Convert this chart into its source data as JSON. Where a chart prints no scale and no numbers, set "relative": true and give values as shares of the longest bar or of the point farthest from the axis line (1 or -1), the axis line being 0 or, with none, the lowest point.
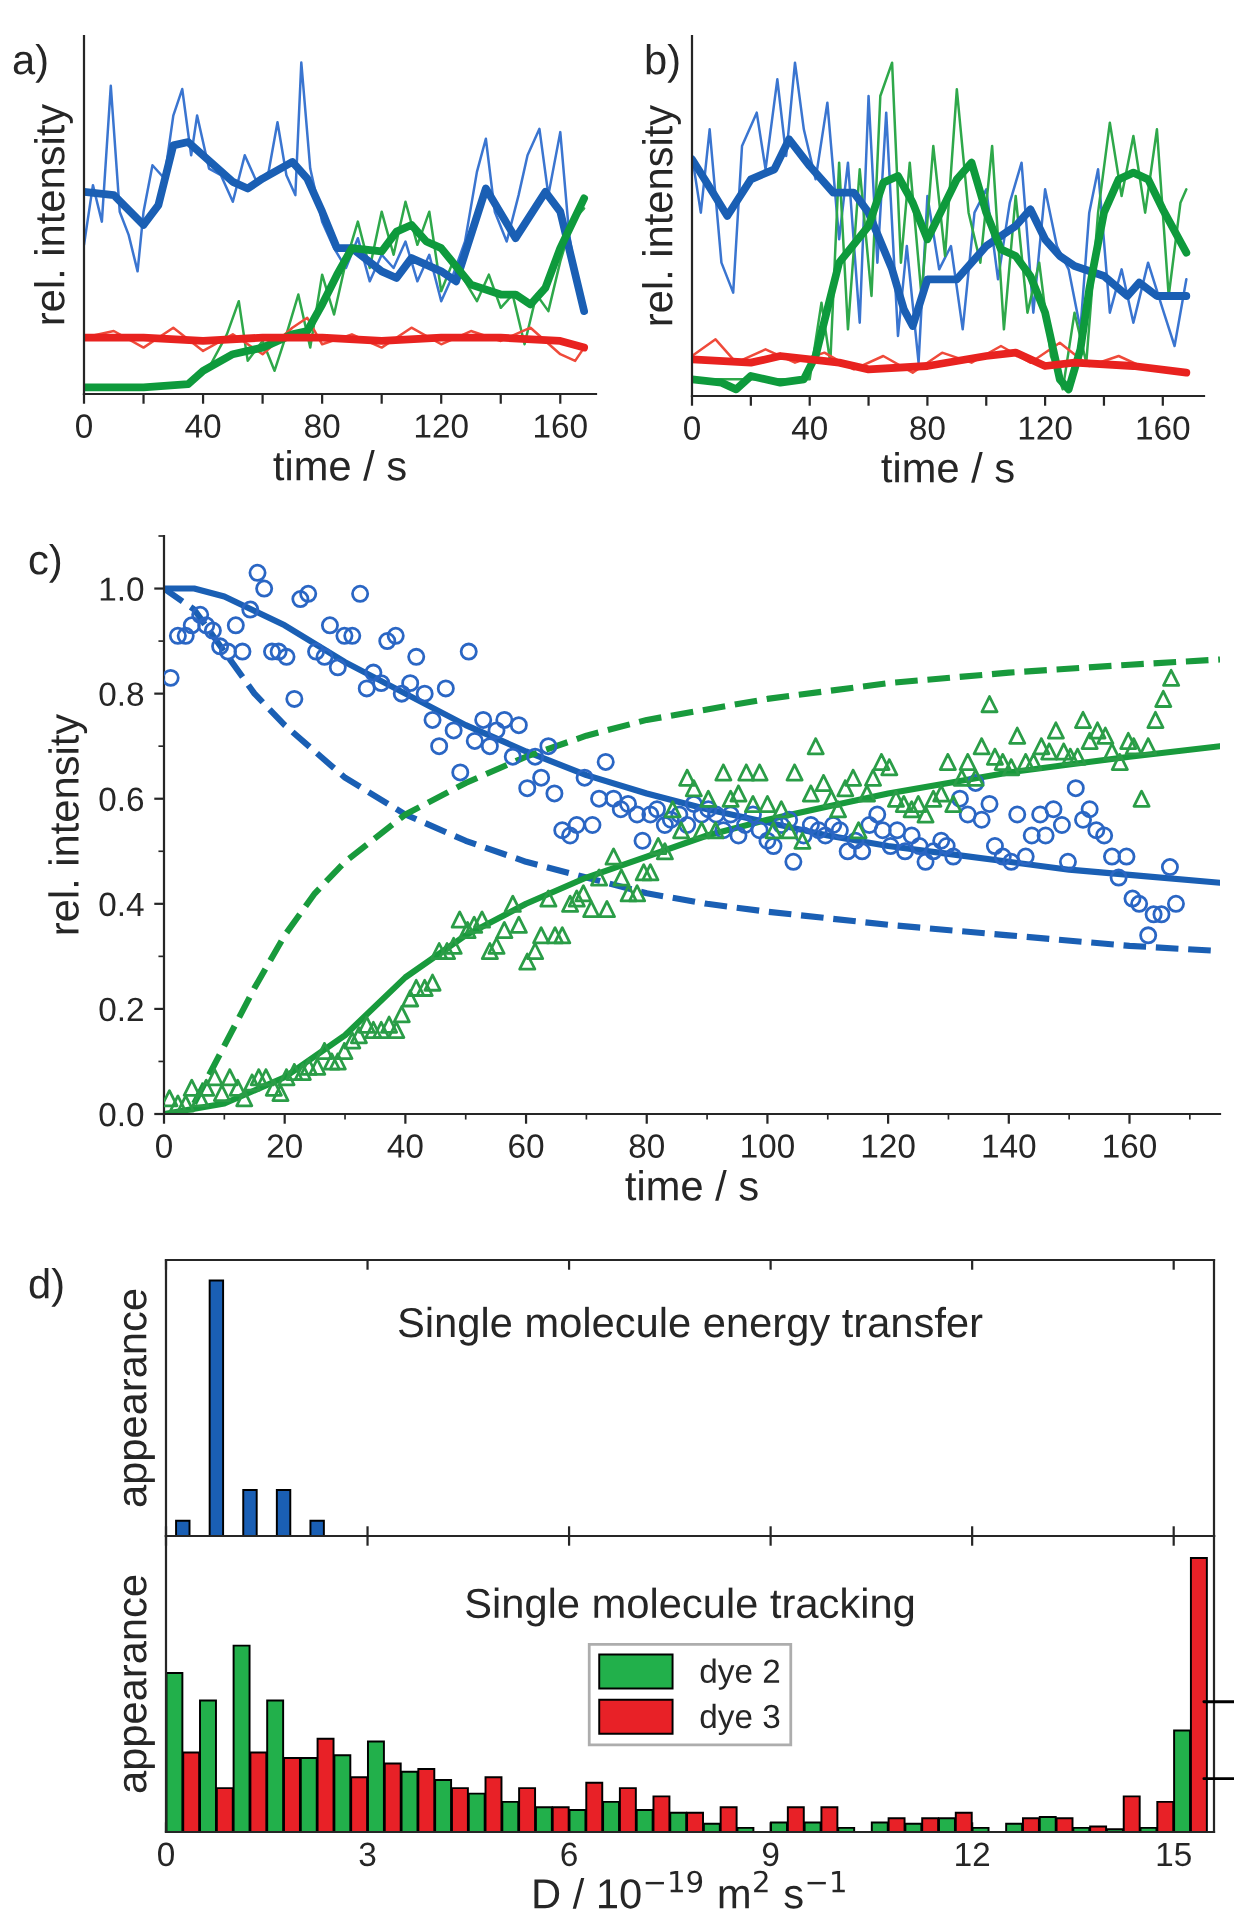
{
  "chart_data": [
    {
      "type": "line",
      "relative": true,
      "xlabel": "time / s",
      "ylabel": "rel. intensity",
      "annotations": [
        "a)"
      ],
      "xlim": [
        0,
        172
      ],
      "xticks": [
        0,
        {
          "value": 20,
          "label": null
        },
        40,
        {
          "value": 60,
          "label": null
        },
        80,
        {
          "value": 100,
          "label": null
        },
        120,
        {
          "value": 140,
          "label": null
        },
        160
      ],
      "tick_labels": "x",
      "series": [
        {
          "color": "#3a75d0",
          "x": [
            0,
            3,
            6,
            9,
            12,
            15,
            18,
            20,
            23,
            27,
            30,
            33,
            36,
            38,
            42,
            46,
            50,
            54,
            58,
            62,
            65,
            68,
            71,
            73,
            76,
            80,
            84,
            88,
            92,
            96,
            100,
            104,
            108,
            112,
            116,
            120,
            124,
            128,
            132,
            135,
            138,
            142,
            146,
            149,
            153,
            156,
            160,
            163,
            166,
            168
          ],
          "values": [
            0.45,
            0.63,
            0.52,
            0.93,
            0.55,
            0.48,
            0.37,
            0.55,
            0.69,
            0.65,
            0.84,
            0.92,
            0.72,
            0.84,
            0.68,
            0.66,
            0.58,
            0.72,
            0.64,
            0.67,
            0.82,
            0.66,
            0.6,
            1.0,
            0.68,
            0.52,
            0.44,
            0.38,
            0.47,
            0.34,
            0.42,
            0.38,
            0.46,
            0.34,
            0.42,
            0.28,
            0.36,
            0.46,
            0.67,
            0.77,
            0.55,
            0.46,
            0.6,
            0.72,
            0.8,
            0.6,
            0.79,
            0.48,
            0.31,
            0.27
          ]
        },
        {
          "color": "#2ea84a",
          "x": [
            0,
            35,
            42,
            48,
            52,
            55,
            60,
            64,
            68,
            72,
            76,
            80,
            84,
            88,
            92,
            96,
            100,
            104,
            108,
            112,
            116,
            120,
            124,
            128,
            132,
            136,
            140,
            144,
            148,
            152,
            156,
            160,
            164,
            168
          ],
          "values": [
            0.02,
            0.03,
            0.08,
            0.18,
            0.28,
            0.1,
            0.16,
            0.07,
            0.18,
            0.3,
            0.14,
            0.36,
            0.24,
            0.4,
            0.52,
            0.38,
            0.55,
            0.42,
            0.58,
            0.45,
            0.55,
            0.31,
            0.4,
            0.34,
            0.28,
            0.36,
            0.26,
            0.3,
            0.15,
            0.3,
            0.25,
            0.4,
            0.52,
            0.56
          ]
        },
        {
          "color": "#ef4a3a",
          "x": [
            0,
            10,
            20,
            30,
            40,
            50,
            60,
            70,
            75,
            80,
            90,
            100,
            110,
            120,
            130,
            140,
            150,
            160,
            165,
            168
          ],
          "values": [
            0.17,
            0.19,
            0.14,
            0.2,
            0.13,
            0.18,
            0.12,
            0.2,
            0.23,
            0.15,
            0.18,
            0.14,
            0.2,
            0.15,
            0.19,
            0.16,
            0.2,
            0.12,
            0.1,
            0.14
          ]
        },
        {
          "color": "#1a5fb4",
          "x": [
            0,
            10,
            20,
            25,
            30,
            35,
            40,
            50,
            55,
            60,
            70,
            75,
            80,
            85,
            90,
            100,
            105,
            110,
            120,
            125,
            135,
            145,
            155,
            160,
            168
          ],
          "values": [
            0.61,
            0.6,
            0.51,
            0.57,
            0.75,
            0.76,
            0.72,
            0.64,
            0.62,
            0.65,
            0.7,
            0.65,
            0.55,
            0.44,
            0.44,
            0.37,
            0.35,
            0.41,
            0.37,
            0.34,
            0.62,
            0.47,
            0.61,
            0.55,
            0.25
          ]
        },
        {
          "color": "#0e9a3c",
          "x": [
            0,
            20,
            35,
            40,
            50,
            60,
            70,
            75,
            80,
            85,
            90,
            100,
            105,
            110,
            115,
            120,
            130,
            140,
            145,
            150,
            155,
            160,
            168
          ],
          "values": [
            0.02,
            0.02,
            0.03,
            0.07,
            0.12,
            0.14,
            0.18,
            0.19,
            0.27,
            0.36,
            0.44,
            0.43,
            0.49,
            0.51,
            0.46,
            0.44,
            0.33,
            0.3,
            0.3,
            0.27,
            0.32,
            0.44,
            0.59
          ]
        },
        {
          "color": "#e8221f",
          "x": [
            0,
            20,
            40,
            60,
            80,
            100,
            120,
            140,
            160,
            168
          ],
          "values": [
            0.17,
            0.17,
            0.16,
            0.17,
            0.17,
            0.16,
            0.17,
            0.17,
            0.16,
            0.14
          ]
        }
      ]
    },
    {
      "type": "line",
      "relative": true,
      "xlabel": "time / s",
      "ylabel": "rel. intensity",
      "annotations": [
        "b)"
      ],
      "xlim": [
        0,
        174
      ],
      "xticks": [
        0,
        {
          "value": 20,
          "label": null
        },
        40,
        {
          "value": 60,
          "label": null
        },
        80,
        {
          "value": 100,
          "label": null
        },
        120,
        {
          "value": 140,
          "label": null
        },
        160
      ],
      "tick_labels": "x",
      "series": [
        {
          "color": "#3a75d0",
          "x": [
            0,
            3,
            6,
            10,
            14,
            17,
            22,
            25,
            29,
            32,
            35,
            38,
            42,
            46,
            50,
            53,
            57,
            60,
            63,
            66,
            70,
            73,
            77,
            80,
            84,
            88,
            92,
            96,
            100,
            104,
            108,
            112,
            116,
            120,
            124,
            128,
            132,
            135,
            138,
            142,
            146,
            150,
            155,
            160,
            164,
            168
          ],
          "values": [
            0.72,
            0.55,
            0.8,
            0.4,
            0.31,
            0.75,
            0.85,
            0.68,
            0.95,
            0.72,
            1.0,
            0.8,
            0.65,
            0.88,
            0.47,
            0.7,
            0.22,
            0.9,
            0.4,
            0.85,
            0.18,
            0.45,
            0.1,
            0.6,
            0.38,
            0.45,
            0.2,
            0.55,
            0.62,
            0.35,
            0.58,
            0.7,
            0.25,
            0.62,
            0.45,
            0.38,
            0.2,
            0.55,
            0.68,
            0.25,
            0.38,
            0.22,
            0.4,
            0.26,
            0.15,
            0.35
          ]
        },
        {
          "color": "#2ea84a",
          "x": [
            0,
            40,
            44,
            47,
            50,
            53,
            57,
            61,
            64,
            68,
            71,
            74,
            78,
            82,
            86,
            90,
            94,
            98,
            102,
            106,
            110,
            114,
            118,
            122,
            126,
            130,
            134,
            138,
            142,
            146,
            150,
            154,
            158,
            162,
            166,
            168
          ],
          "values": [
            0.05,
            0.05,
            0.28,
            0.1,
            0.7,
            0.2,
            0.68,
            0.3,
            0.9,
            1.0,
            0.4,
            0.7,
            0.3,
            0.75,
            0.42,
            0.92,
            0.55,
            0.4,
            0.75,
            0.2,
            0.6,
            0.25,
            0.4,
            0.12,
            0.02,
            0.25,
            0.1,
            0.55,
            0.82,
            0.6,
            0.78,
            0.55,
            0.8,
            0.3,
            0.58,
            0.62
          ]
        },
        {
          "color": "#ef4a3a",
          "x": [
            0,
            8,
            15,
            25,
            35,
            45,
            55,
            65,
            75,
            85,
            95,
            105,
            115,
            125,
            135,
            145,
            155,
            168
          ],
          "values": [
            0.12,
            0.17,
            0.1,
            0.14,
            0.1,
            0.13,
            0.08,
            0.12,
            0.07,
            0.13,
            0.1,
            0.15,
            0.1,
            0.16,
            0.09,
            0.12,
            0.08,
            0.07
          ]
        },
        {
          "color": "#1a5fb4",
          "x": [
            0,
            5,
            12,
            20,
            28,
            33,
            40,
            48,
            55,
            60,
            68,
            72,
            75,
            80,
            90,
            100,
            110,
            115,
            120,
            125,
            130,
            140,
            148,
            152,
            158,
            168
          ],
          "values": [
            0.71,
            0.64,
            0.54,
            0.65,
            0.68,
            0.77,
            0.69,
            0.61,
            0.61,
            0.55,
            0.38,
            0.26,
            0.21,
            0.35,
            0.35,
            0.45,
            0.51,
            0.56,
            0.47,
            0.42,
            0.39,
            0.36,
            0.3,
            0.34,
            0.3,
            0.3
          ]
        },
        {
          "color": "#0e9a3c",
          "x": [
            0,
            10,
            15,
            20,
            30,
            38,
            42,
            50,
            60,
            65,
            70,
            75,
            80,
            85,
            90,
            95,
            100,
            105,
            110,
            115,
            120,
            125,
            128,
            132,
            135,
            140,
            145,
            150,
            155,
            160,
            168
          ],
          "values": [
            0.05,
            0.04,
            0.02,
            0.06,
            0.04,
            0.05,
            0.12,
            0.4,
            0.51,
            0.64,
            0.66,
            0.58,
            0.47,
            0.56,
            0.65,
            0.7,
            0.55,
            0.44,
            0.42,
            0.36,
            0.25,
            0.05,
            0.02,
            0.14,
            0.32,
            0.55,
            0.65,
            0.67,
            0.65,
            0.56,
            0.43
          ]
        },
        {
          "color": "#e8221f",
          "x": [
            0,
            20,
            30,
            50,
            60,
            80,
            100,
            110,
            120,
            130,
            150,
            168
          ],
          "values": [
            0.11,
            0.1,
            0.12,
            0.1,
            0.08,
            0.09,
            0.12,
            0.13,
            0.09,
            0.1,
            0.09,
            0.07
          ]
        }
      ]
    },
    {
      "type": "scatter",
      "xlabel": "time / s",
      "ylabel": "rel. intensity",
      "annotations": [
        "c)"
      ],
      "xlim": [
        0,
        175
      ],
      "xticks": [
        0,
        20,
        40,
        60,
        80,
        100,
        120,
        140,
        160
      ],
      "ylim": [
        0,
        1.1
      ],
      "yticks": [
        {
          "value": 0,
          "label": "0.0"
        },
        0.2,
        0.4,
        0.6,
        0.8,
        {
          "value": 1,
          "label": "1.0"
        }
      ],
      "series": [
        {
          "type": "scatter",
          "marker": "circle",
          "color": "#2a66c4",
          "x": [
            1.1,
            2.3,
            3.6,
            4.6,
            6,
            7,
            8.1,
            9.3,
            10.6,
            11.9,
            13,
            14.3,
            15.5,
            16.6,
            17.9,
            19,
            20.3,
            21.6,
            22.6,
            23.9,
            25.2,
            26.6,
            27.5,
            28.8,
            29.9,
            31.2,
            32.5,
            33.6,
            34.7,
            36,
            37,
            38.4,
            39.4,
            40.8,
            41.8,
            43.2,
            44.5,
            45.6,
            46.7,
            48,
            49.1,
            50.5,
            51.5,
            52.9,
            54,
            55.1,
            56.4,
            57.8,
            58.8,
            60.2,
            61.5,
            62.5,
            63.7,
            64.7,
            66,
            67.3,
            68.4,
            69.7,
            71,
            72.1,
            73.2,
            74.5,
            75.7,
            76.9,
            78.4,
            79.3,
            80.6,
            81.7,
            83,
            84,
            85.4,
            86.7,
            87.8,
            89.1,
            90.2,
            91.5,
            92.7,
            93.9,
            95.2,
            96.3,
            97.6,
            98.7,
            100,
            101,
            102.3,
            103.6,
            104.3,
            106,
            107.2,
            108.5,
            109.6,
            110.9,
            112,
            113.3,
            114.6,
            115.7,
            116.9,
            118.2,
            119.1,
            120.4,
            121.5,
            122.8,
            123.9,
            125.2,
            126.2,
            127.5,
            128.8,
            129.7,
            130.8,
            131.9,
            133.2,
            134.5,
            135.5,
            136.8,
            137.7,
            139,
            140.4,
            141.4,
            142.8,
            143.8,
            145.2,
            146.1,
            147.4,
            148.8,
            149.8,
            151.1,
            152.3,
            153.4,
            154.5,
            155.8,
            157.1,
            158.2,
            159.5,
            160.5,
            161.6,
            163.1,
            164,
            165.3,
            166.7,
            167.7
          ],
          "values": [
            0.83,
            0.91,
            0.91,
            0.93,
            0.95,
            0.93,
            0.92,
            0.89,
            0.88,
            0.93,
            0.88,
            0.96,
            1.03,
            1.0,
            0.88,
            0.88,
            0.87,
            0.79,
            0.98,
            0.99,
            0.88,
            0.87,
            0.93,
            0.85,
            0.91,
            0.91,
            0.99,
            0.81,
            0.84,
            0.82,
            0.9,
            0.91,
            0.8,
            0.82,
            0.87,
            0.8,
            0.75,
            0.7,
            0.81,
            0.73,
            0.65,
            0.88,
            0.71,
            0.75,
            0.7,
            0.73,
            0.75,
            0.68,
            0.74,
            0.62,
            0.68,
            0.64,
            0.7,
            0.61,
            0.54,
            0.53,
            0.55,
            0.64,
            0.55,
            0.6,
            0.67,
            0.6,
            0.58,
            0.59,
            0.57,
            0.52,
            0.57,
            0.58,
            0.55,
            0.56,
            0.57,
            0.55,
            0.59,
            0.57,
            0.58,
            0.57,
            0.54,
            0.57,
            0.53,
            0.55,
            0.57,
            0.54,
            0.52,
            0.51,
            0.55,
            0.56,
            0.48,
            0.53,
            0.55,
            0.54,
            0.53,
            0.55,
            0.54,
            0.5,
            0.52,
            0.5,
            0.55,
            0.57,
            0.54,
            0.51,
            0.54,
            0.5,
            0.53,
            0.51,
            0.48,
            0.5,
            0.52,
            0.51,
            0.49,
            0.6,
            0.57,
            0.63,
            0.56,
            0.59,
            0.51,
            0.49,
            0.48,
            0.57,
            0.49,
            0.53,
            0.57,
            0.53,
            0.58,
            0.55,
            0.48,
            0.62,
            0.56,
            0.58,
            0.54,
            0.53,
            0.49,
            0.45,
            0.49,
            0.41,
            0.4,
            0.34,
            0.38,
            0.38,
            0.47,
            0.4
          ]
        },
        {
          "type": "scatter",
          "marker": "triangle",
          "color": "#2a9d47",
          "x": [
            0.9,
            2.3,
            3.6,
            4.6,
            6,
            7,
            8.4,
            9.6,
            10.9,
            12.2,
            13.3,
            14.6,
            15.7,
            16.9,
            18.2,
            19.3,
            20.3,
            21.6,
            23,
            24,
            25.4,
            26.6,
            27.8,
            28.8,
            29.9,
            31.2,
            32.3,
            33.6,
            34.7,
            36,
            37.3,
            38.5,
            39.4,
            40.8,
            41.8,
            43.2,
            44.5,
            45.6,
            46.9,
            48,
            49,
            50.3,
            51.4,
            52.7,
            54,
            55.1,
            56.4,
            57.8,
            58.8,
            60.2,
            61.5,
            62.5,
            63.7,
            64.8,
            66,
            67.3,
            68.4,
            69.5,
            70.8,
            72.1,
            73.4,
            74.5,
            75.8,
            77,
            78.4,
            79.5,
            80.6,
            81.9,
            83,
            84.3,
            85.7,
            86.7,
            87.8,
            89.1,
            90.2,
            91.4,
            92.7,
            93.9,
            95.2,
            96.5,
            97.6,
            98.7,
            100,
            101,
            102.3,
            103.6,
            104.5,
            105.8,
            107.2,
            108,
            109.3,
            110.6,
            111.7,
            112.9,
            114.2,
            115.1,
            116.5,
            117.5,
            118.9,
            120.2,
            121.3,
            122.6,
            123.9,
            125,
            126.2,
            127.5,
            128.8,
            129.9,
            130.8,
            132.2,
            133.2,
            134.5,
            135.5,
            136.8,
            137.7,
            139,
            140.4,
            141.4,
            142.8,
            144.1,
            145.4,
            146.7,
            147.8,
            149.1,
            150.2,
            151.4,
            152.3,
            153.4,
            154.7,
            156,
            157.1,
            158.4,
            159.8,
            160.7,
            162,
            163.1,
            164.3,
            165.6,
            166.9
          ],
          "values": [
            0.03,
            0.02,
            0.02,
            0.05,
            0.03,
            0.05,
            0.07,
            0.04,
            0.07,
            0.05,
            0.03,
            0.06,
            0.07,
            0.07,
            0.05,
            0.04,
            0.07,
            0.08,
            0.08,
            0.09,
            0.09,
            0.12,
            0.1,
            0.1,
            0.12,
            0.14,
            0.15,
            0.17,
            0.16,
            0.16,
            0.17,
            0.16,
            0.19,
            0.22,
            0.24,
            0.24,
            0.25,
            0.31,
            0.31,
            0.32,
            0.37,
            0.35,
            0.36,
            0.37,
            0.31,
            0.32,
            0.35,
            0.4,
            0.36,
            0.29,
            0.31,
            0.34,
            0.41,
            0.34,
            0.34,
            0.4,
            0.41,
            0.42,
            0.39,
            0.45,
            0.39,
            0.49,
            0.45,
            0.42,
            0.42,
            0.46,
            0.46,
            0.51,
            0.5,
            0.58,
            0.54,
            0.64,
            0.62,
            0.54,
            0.6,
            0.54,
            0.65,
            0.6,
            0.61,
            0.65,
            0.59,
            0.65,
            0.59,
            0.54,
            0.58,
            0.54,
            0.65,
            0.52,
            0.61,
            0.7,
            0.63,
            0.6,
            0.58,
            0.62,
            0.64,
            0.54,
            0.61,
            0.64,
            0.67,
            0.66,
            0.6,
            0.59,
            0.58,
            0.59,
            0.57,
            0.6,
            0.61,
            0.67,
            0.59,
            0.64,
            0.67,
            0.64,
            0.7,
            0.78,
            0.68,
            0.67,
            0.66,
            0.72,
            0.67,
            0.67,
            0.7,
            0.69,
            0.73,
            0.69,
            0.68,
            0.68,
            0.75,
            0.71,
            0.73,
            0.72,
            0.69,
            0.67,
            0.71,
            0.7,
            0.6,
            0.7,
            0.75,
            0.79,
            0.83
          ]
        },
        {
          "type": "line",
          "line_style": "solid",
          "color": "#1a5fb4",
          "x": [
            0,
            5,
            10,
            20,
            30,
            40,
            50,
            60,
            70,
            80,
            90,
            100,
            110,
            120,
            130,
            140,
            150,
            160,
            175
          ],
          "values": [
            1.0,
            1.0,
            0.985,
            0.93,
            0.86,
            0.8,
            0.74,
            0.69,
            0.645,
            0.61,
            0.58,
            0.555,
            0.53,
            0.51,
            0.495,
            0.48,
            0.465,
            0.455,
            0.44
          ]
        },
        {
          "type": "line",
          "line_style": "dashed",
          "color": "#1a5fb4",
          "x": [
            0,
            5,
            10,
            15,
            20,
            30,
            40,
            50,
            60,
            70,
            80,
            90,
            100,
            120,
            140,
            160,
            175
          ],
          "values": [
            1.0,
            0.96,
            0.88,
            0.8,
            0.74,
            0.64,
            0.57,
            0.52,
            0.48,
            0.45,
            0.42,
            0.4,
            0.385,
            0.36,
            0.34,
            0.32,
            0.31
          ]
        },
        {
          "type": "line",
          "line_style": "solid",
          "color": "#189a3c",
          "x": [
            0,
            10,
            20,
            30,
            40,
            50,
            60,
            70,
            80,
            90,
            100,
            110,
            120,
            130,
            140,
            150,
            160,
            175
          ],
          "values": [
            0,
            0.02,
            0.07,
            0.15,
            0.26,
            0.34,
            0.4,
            0.45,
            0.49,
            0.53,
            0.56,
            0.585,
            0.61,
            0.63,
            0.65,
            0.665,
            0.68,
            0.7
          ]
        },
        {
          "type": "line",
          "line_style": "dashed",
          "color": "#189a3c",
          "x": [
            5,
            10,
            15,
            20,
            25,
            30,
            40,
            50,
            60,
            70,
            80,
            100,
            120,
            140,
            160,
            175
          ],
          "values": [
            0.02,
            0.13,
            0.24,
            0.34,
            0.42,
            0.48,
            0.57,
            0.63,
            0.68,
            0.72,
            0.75,
            0.79,
            0.82,
            0.84,
            0.855,
            0.865
          ]
        }
      ]
    },
    {
      "type": "bar",
      "relative": true,
      "title": "Single molecule energy transfer",
      "ylabel": "appearance",
      "annotations": [
        "d)"
      ],
      "xlim": [
        0,
        15.6
      ],
      "xticks": [
        0,
        3,
        6,
        9,
        12,
        15
      ],
      "tick_labels": false,
      "series": [
        {
          "color": "#1a5fb4",
          "x": [
            0.25,
            0.75,
            1.25,
            1.75,
            2.25
          ],
          "values": [
            0.06,
            1,
            0.18,
            0.18,
            0.06
          ]
        }
      ]
    },
    {
      "type": "bar",
      "relative": true,
      "title": "Single molecule tracking",
      "ylabel": "appearance",
      "xlabel": "D / 10$^{−19}$ m$^{2}$ s$^{−1}$",
      "xlim": [
        0,
        15.6
      ],
      "xticks": [
        0,
        3,
        6,
        9,
        12,
        15
      ],
      "tick_labels": "x",
      "legend": "top",
      "series": [
        {
          "name": "dye 2",
          "color": "#22b04b",
          "x": [
            0.125,
            0.625,
            1.125,
            1.625,
            2.125,
            2.625,
            3.125,
            3.625,
            4.125,
            4.625,
            5.125,
            5.625,
            6.125,
            6.625,
            7.125,
            7.625,
            8.125,
            8.625,
            9.125,
            9.625,
            10.125,
            10.625,
            11.125,
            11.625,
            12.125,
            12.625,
            13.125,
            13.625,
            14.125,
            14.625,
            15.125
          ],
          "values": [
            0.58,
            0.48,
            0.68,
            0.48,
            0.27,
            0.28,
            0.33,
            0.22,
            0.19,
            0.14,
            0.11,
            0.09,
            0.08,
            0.11,
            0.08,
            0.07,
            0.03,
            0.015,
            0.035,
            0.035,
            0.015,
            0.035,
            0.03,
            0.05,
            0.015,
            0.03,
            0.055,
            0.015,
            0.01,
            0.015,
            0.37
          ]
        },
        {
          "name": "dye 3",
          "color": "#e82127",
          "x": [
            0.375,
            0.875,
            1.375,
            1.875,
            2.375,
            2.875,
            3.375,
            3.875,
            4.375,
            4.875,
            5.375,
            5.875,
            6.375,
            6.875,
            7.375,
            7.875,
            8.375,
            8.875,
            9.375,
            9.875,
            10.375,
            10.875,
            11.375,
            11.875,
            12.375,
            12.875,
            13.375,
            13.875,
            14.375,
            14.875,
            15.375
          ],
          "values": [
            0.29,
            0.16,
            0.29,
            0.27,
            0.34,
            0.2,
            0.25,
            0.23,
            0.16,
            0.2,
            0.16,
            0.09,
            0.18,
            0.16,
            0.13,
            0.07,
            0.09,
            0,
            0.09,
            0.09,
            0,
            0.05,
            0.05,
            0.07,
            0,
            0.05,
            0.05,
            0.02,
            0.13,
            0.11,
            1.0
          ]
        }
      ]
    }
  ]
}
